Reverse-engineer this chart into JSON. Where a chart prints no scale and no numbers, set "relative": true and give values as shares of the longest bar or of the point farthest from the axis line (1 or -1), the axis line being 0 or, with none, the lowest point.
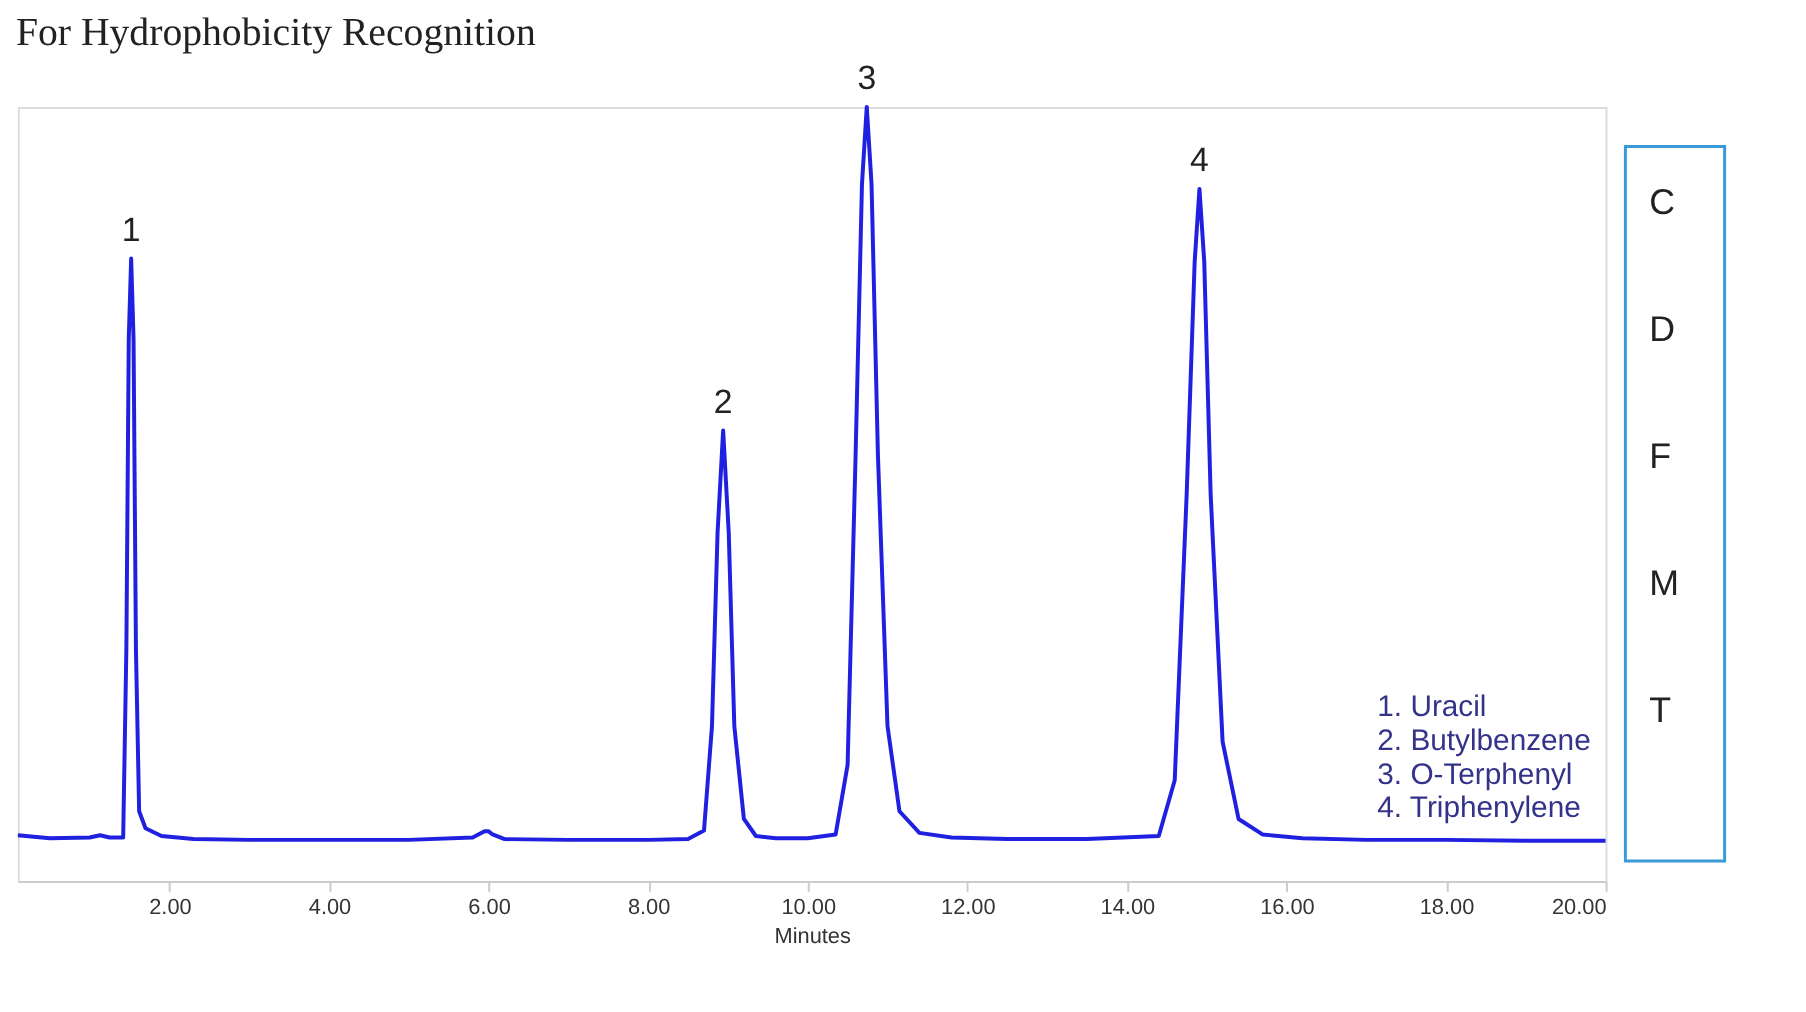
{
  "chart_data": {
    "type": "line",
    "title": "For Hydrophobicity Recognition",
    "xlabel": "Minutes",
    "relative": true,
    "xlim": [
      0.1,
      20
    ],
    "xticks": [
      {
        "value": 2,
        "label": "2.00"
      },
      {
        "value": 4,
        "label": "4.00"
      },
      {
        "value": 6,
        "label": "6.00"
      },
      {
        "value": 8,
        "label": "8.00"
      },
      {
        "value": 10,
        "label": "10.00"
      },
      {
        "value": 12,
        "label": "12.00"
      },
      {
        "value": 14,
        "label": "14.00"
      },
      {
        "value": 16,
        "label": "16.00"
      },
      {
        "value": 18,
        "label": "18.00"
      },
      {
        "value": 20,
        "label": "20.00"
      }
    ],
    "series": [
      {
        "color": "#2020e0",
        "x": [
          0.1,
          0.5,
          1.0,
          1.13,
          1.25,
          1.42,
          1.46,
          1.49,
          1.52,
          1.55,
          1.58,
          1.62,
          1.7,
          1.9,
          2.3,
          3.0,
          4.0,
          5.0,
          5.8,
          5.95,
          6.0,
          6.05,
          6.2,
          7.0,
          8.0,
          8.5,
          8.7,
          8.8,
          8.87,
          8.94,
          9.01,
          9.08,
          9.2,
          9.35,
          9.6,
          10.0,
          10.35,
          10.5,
          10.6,
          10.68,
          10.74,
          10.8,
          10.88,
          11.0,
          11.15,
          11.4,
          11.8,
          12.5,
          13.5,
          14.4,
          14.6,
          14.75,
          14.85,
          14.91,
          14.97,
          15.05,
          15.2,
          15.4,
          15.7,
          16.2,
          17.0,
          18.0,
          19.0,
          20.0
        ],
        "values": [
          0.059,
          0.055,
          0.056,
          0.059,
          0.056,
          0.056,
          0.3,
          0.7,
          0.804,
          0.7,
          0.3,
          0.09,
          0.068,
          0.058,
          0.054,
          0.053,
          0.053,
          0.053,
          0.056,
          0.064,
          0.064,
          0.06,
          0.054,
          0.053,
          0.053,
          0.054,
          0.065,
          0.2,
          0.45,
          0.582,
          0.45,
          0.2,
          0.08,
          0.058,
          0.055,
          0.055,
          0.06,
          0.15,
          0.55,
          0.9,
          1.0,
          0.9,
          0.55,
          0.2,
          0.09,
          0.062,
          0.056,
          0.054,
          0.054,
          0.058,
          0.13,
          0.5,
          0.8,
          0.894,
          0.8,
          0.5,
          0.18,
          0.08,
          0.06,
          0.055,
          0.053,
          0.053,
          0.052,
          0.052
        ]
      }
    ],
    "annotations": [
      "1. Uracil\n2. Butylbenzene\n3. O-Terphenyl\n4. Triphenylene",
      "C\nD\nF\nM\nT",
      {
        "text": "1",
        "x": 1.52,
        "y": 0.804
      },
      {
        "text": "2",
        "x": 8.94,
        "y": 0.582
      },
      {
        "text": "3",
        "x": 10.74,
        "y": 1.0
      },
      {
        "text": "4",
        "x": 14.91,
        "y": 0.894
      }
    ]
  }
}
